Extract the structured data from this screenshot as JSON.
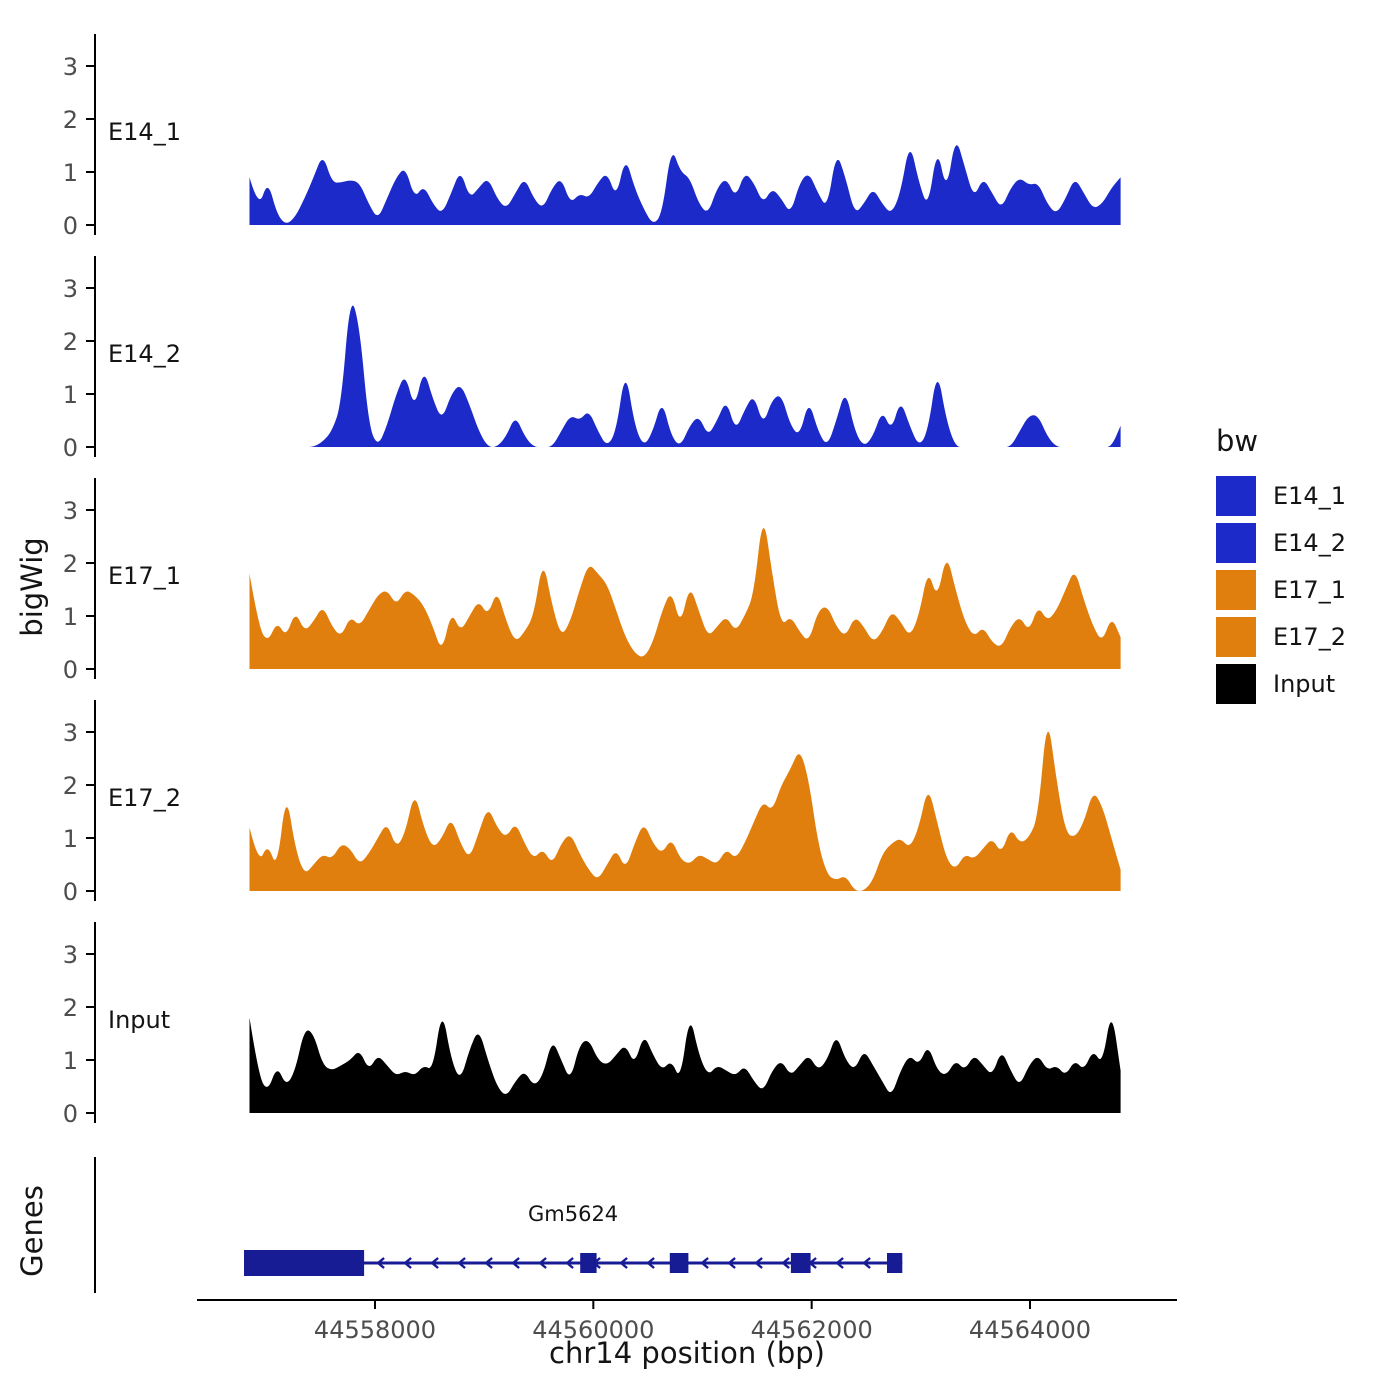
{
  "colors": {
    "blue": "#1B2AC8",
    "orange": "#E07F0E",
    "black": "#000000",
    "gene": "#181C94",
    "axis": "#000000",
    "tick_text": "#4D4D4D",
    "background": "#FFFFFF"
  },
  "chart_data": {
    "type": "area",
    "title": "",
    "xlabel": "chr14 position (bp)",
    "ylabel": "bigWig",
    "genes_label": "Genes",
    "x_start": 44556850,
    "x_step": 84,
    "x_ticks": [
      44558000,
      44560000,
      44562000,
      44564000
    ],
    "y_ticks": [
      0,
      1,
      2,
      3
    ],
    "ylim": [
      0,
      3.6
    ],
    "grid": "off",
    "legend_position": "right",
    "tracks": [
      {
        "name": "E14_1",
        "color": "#1B2AC8",
        "values": [
          0.9,
          0.3,
          0.85,
          0.2,
          0,
          0.15,
          0.5,
          0.9,
          1.35,
          0.8,
          0.8,
          0.85,
          0.8,
          0.4,
          0.1,
          0.5,
          0.9,
          1.1,
          0.5,
          0.75,
          0.4,
          0.2,
          0.6,
          1.05,
          0.5,
          0.7,
          0.9,
          0.5,
          0.3,
          0.6,
          0.9,
          0.5,
          0.3,
          0.7,
          0.9,
          0.4,
          0.6,
          0.5,
          0.8,
          1.0,
          0.5,
          1.3,
          0.7,
          0.3,
          0,
          0.2,
          1.5,
          1.0,
          0.9,
          0.4,
          0.2,
          0.7,
          0.9,
          0.5,
          1.0,
          0.8,
          0.4,
          0.7,
          0.5,
          0.2,
          0.8,
          1.0,
          0.6,
          0.3,
          1.4,
          0.9,
          0.2,
          0.4,
          0.7,
          0.4,
          0.2,
          0.6,
          1.6,
          0.8,
          0.3,
          1.5,
          0.6,
          1.7,
          1.1,
          0.5,
          0.9,
          0.6,
          0.3,
          0.7,
          0.9,
          0.75,
          0.8,
          0.4,
          0.2,
          0.5,
          0.9,
          0.6,
          0.3,
          0.4,
          0.7,
          0.9
        ]
      },
      {
        "name": "E14_2",
        "color": "#1B2AC8",
        "values": [
          0,
          0,
          0,
          0,
          0,
          0,
          0,
          0,
          0.1,
          0.3,
          0.8,
          2.9,
          2.3,
          0.4,
          0,
          0.4,
          1.0,
          1.4,
          0.7,
          1.5,
          0.9,
          0.5,
          1.0,
          1.2,
          0.8,
          0.3,
          0,
          0,
          0.2,
          0.6,
          0.2,
          0,
          0,
          0,
          0.3,
          0.6,
          0.5,
          0.7,
          0.3,
          0,
          0.3,
          1.5,
          0.4,
          0,
          0.3,
          0.9,
          0.2,
          0,
          0.4,
          0.6,
          0.2,
          0.5,
          0.9,
          0.3,
          0.7,
          1.0,
          0.4,
          0.9,
          1.0,
          0.4,
          0.2,
          0.9,
          0.3,
          0,
          0.5,
          1.1,
          0.3,
          0,
          0.2,
          0.7,
          0.3,
          0.9,
          0.4,
          0,
          0.3,
          1.5,
          0.5,
          0,
          0,
          0,
          0,
          0,
          0,
          0,
          0.3,
          0.6,
          0.6,
          0.2,
          0,
          0,
          0,
          0,
          0,
          0,
          0,
          0.4
        ]
      },
      {
        "name": "E17_1",
        "color": "#E07F0E",
        "values": [
          1.8,
          0.8,
          0.5,
          0.9,
          0.6,
          1.1,
          0.7,
          0.9,
          1.2,
          0.8,
          0.6,
          1.0,
          0.8,
          1.1,
          1.4,
          1.5,
          1.2,
          1.5,
          1.4,
          1.2,
          0.8,
          0.3,
          1.1,
          0.7,
          1.0,
          1.3,
          1.0,
          1.5,
          0.9,
          0.5,
          0.7,
          1.0,
          2.1,
          1.2,
          0.6,
          0.9,
          1.5,
          2.0,
          1.8,
          1.6,
          1.1,
          0.6,
          0.3,
          0.2,
          0.5,
          1.1,
          1.5,
          0.8,
          1.6,
          1.1,
          0.6,
          0.8,
          1.0,
          0.7,
          1.0,
          1.4,
          3.0,
          1.8,
          0.8,
          1.0,
          0.7,
          0.5,
          1.1,
          1.2,
          0.8,
          0.6,
          1.0,
          0.8,
          0.5,
          0.7,
          1.1,
          0.9,
          0.6,
          1.0,
          1.9,
          1.3,
          2.2,
          1.5,
          0.9,
          0.6,
          0.8,
          0.5,
          0.4,
          0.8,
          1.0,
          0.7,
          1.2,
          0.9,
          1.1,
          1.5,
          1.9,
          1.3,
          0.8,
          0.5,
          1.0,
          0.6
        ]
      },
      {
        "name": "E17_2",
        "color": "#E07F0E",
        "values": [
          1.2,
          0.5,
          0.9,
          0.4,
          1.9,
          0.8,
          0.3,
          0.5,
          0.7,
          0.6,
          0.9,
          0.8,
          0.5,
          0.7,
          1.0,
          1.3,
          0.8,
          1.1,
          1.9,
          1.2,
          0.8,
          1.0,
          1.4,
          0.9,
          0.6,
          1.1,
          1.6,
          1.2,
          1.0,
          1.3,
          0.9,
          0.6,
          0.8,
          0.5,
          0.9,
          1.1,
          0.7,
          0.4,
          0.2,
          0.5,
          0.8,
          0.4,
          0.9,
          1.3,
          0.9,
          0.7,
          1.0,
          0.6,
          0.5,
          0.7,
          0.6,
          0.5,
          0.8,
          0.6,
          0.9,
          1.3,
          1.7,
          1.5,
          2.0,
          2.3,
          2.7,
          2.1,
          0.9,
          0.3,
          0.2,
          0.3,
          0,
          0,
          0.2,
          0.7,
          0.9,
          1.0,
          0.8,
          1.2,
          2.0,
          1.3,
          0.6,
          0.4,
          0.7,
          0.6,
          0.8,
          1.0,
          0.7,
          1.2,
          0.9,
          1.0,
          1.4,
          3.4,
          2.1,
          1.1,
          1.0,
          1.3,
          1.9,
          1.6,
          1.0,
          0.4
        ]
      },
      {
        "name": "Input",
        "color": "#000000",
        "values": [
          1.8,
          0.7,
          0.4,
          0.9,
          0.5,
          0.8,
          1.6,
          1.5,
          0.9,
          0.8,
          0.9,
          1.0,
          1.2,
          0.8,
          1.1,
          0.9,
          0.7,
          0.8,
          0.7,
          0.9,
          0.8,
          2.0,
          1.0,
          0.6,
          1.2,
          1.6,
          1.0,
          0.5,
          0.3,
          0.6,
          0.8,
          0.5,
          0.7,
          1.4,
          1.0,
          0.6,
          1.3,
          1.4,
          1.0,
          0.9,
          1.1,
          1.3,
          0.9,
          1.5,
          1.1,
          0.8,
          1.0,
          0.6,
          1.9,
          1.1,
          0.7,
          0.9,
          0.8,
          0.7,
          0.9,
          0.6,
          0.4,
          0.8,
          1.0,
          0.7,
          0.9,
          1.1,
          0.8,
          1.0,
          1.5,
          1.0,
          0.8,
          1.2,
          0.9,
          0.6,
          0.3,
          0.8,
          1.1,
          0.9,
          1.3,
          0.8,
          0.7,
          1.0,
          0.8,
          1.1,
          0.9,
          0.7,
          1.2,
          0.8,
          0.5,
          0.9,
          1.1,
          0.8,
          0.9,
          0.7,
          1.0,
          0.8,
          1.2,
          0.9,
          2.0,
          0.8
        ]
      }
    ],
    "gene": {
      "name": "Gm5624",
      "strand": "-",
      "color": "#181C94",
      "start": 44556800,
      "end": 44562830,
      "exons": [
        {
          "start": 44556800,
          "end": 44557900,
          "tall": true
        },
        {
          "start": 44559880,
          "end": 44560030
        },
        {
          "start": 44560700,
          "end": 44560870
        },
        {
          "start": 44561810,
          "end": 44561990
        },
        {
          "start": 44562690,
          "end": 44562830
        }
      ]
    },
    "legend": {
      "title": "bw",
      "items": [
        {
          "label": "E14_1",
          "color": "#1B2AC8"
        },
        {
          "label": "E14_2",
          "color": "#1B2AC8"
        },
        {
          "label": "E17_1",
          "color": "#E07F0E"
        },
        {
          "label": "E17_2",
          "color": "#E07F0E"
        },
        {
          "label": "Input",
          "color": "#000000"
        }
      ]
    }
  }
}
